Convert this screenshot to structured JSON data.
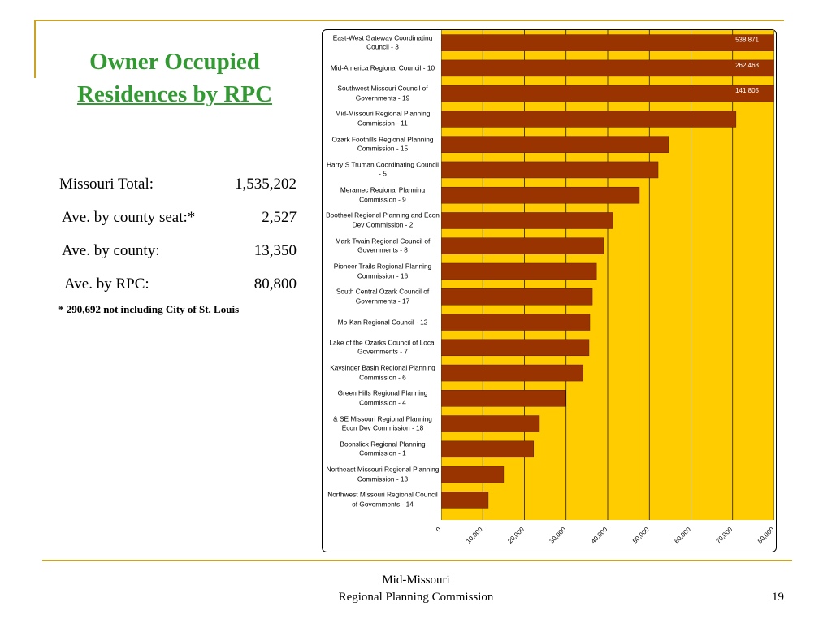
{
  "title_lines": [
    "Owner Occupied",
    "Residences by RPC"
  ],
  "stats": [
    {
      "label": "Missouri Total:",
      "value": "1,535,202"
    },
    {
      "label": "Ave. by county seat:*",
      "value": "2,527"
    },
    {
      "label": "Ave. by county:",
      "value": "13,350"
    },
    {
      "label": "Ave. by RPC:",
      "value": "80,800"
    }
  ],
  "footnote": "* 290,692 not including City of St. Louis",
  "footer": {
    "org_lines": [
      "Mid-Missouri",
      "Regional Planning Commission"
    ],
    "page": "19"
  },
  "chart_data": {
    "type": "bar",
    "orientation": "horizontal",
    "categories": [
      "East-West Gateway Coordinating Council - 3",
      "Mid-America Regional Council - 10",
      "Southwest Missouri Council of Governments - 19",
      "Mid-Missouri Regional Planning Commission - 11",
      "Ozark Foothills Regional Planning Commission - 15",
      "Harry S Truman Coordinating Council - 5",
      "Meramec Regional Planning Commission - 9",
      "Bootheel Regional Planning and Econ Dev Commission - 2",
      "Mark Twain Regional Council of Governments - 8",
      "Pioneer Trails Regional Planning Commission - 16",
      "South Central Ozark Council of Governments - 17",
      "Mo-Kan Regional Council - 12",
      "Lake of the Ozarks Council of Local Governments - 7",
      "Kaysinger Basin Regional Planning Commission - 6",
      "Green Hills Regional Planning Commission - 4",
      "& SE Missouri Regional Planning Econ Dev Commission - 18",
      "Boonslick Regional Planning Commission - 1",
      "Northeast Missouri Regional Planning Commission - 13",
      "Northwest Missouri Regional Council of Governments - 14"
    ],
    "values": [
      538871,
      262463,
      141805,
      70800,
      54600,
      52100,
      47600,
      41200,
      39000,
      37300,
      36300,
      35700,
      35500,
      34100,
      29900,
      23600,
      22200,
      15000,
      11300
    ],
    "value_labels": [
      "538,871",
      "262,463",
      "141,805",
      null,
      null,
      null,
      null,
      null,
      null,
      null,
      null,
      null,
      null,
      null,
      null,
      null,
      null,
      null,
      null
    ],
    "color": "#993300",
    "background": "#ffcc00",
    "grid": true,
    "xlim": [
      0,
      80000
    ],
    "xticks": [
      0,
      {
        "value": 10000,
        "label": "10,000"
      },
      {
        "value": 20000,
        "label": "20,000"
      },
      {
        "value": 30000,
        "label": "30,000"
      },
      {
        "value": 40000,
        "label": "40,000"
      },
      {
        "value": 50000,
        "label": "50,000"
      },
      {
        "value": 60000,
        "label": "60,000"
      },
      {
        "value": 70000,
        "label": "70,000"
      },
      {
        "value": 80000,
        "label": "80,000"
      }
    ]
  }
}
